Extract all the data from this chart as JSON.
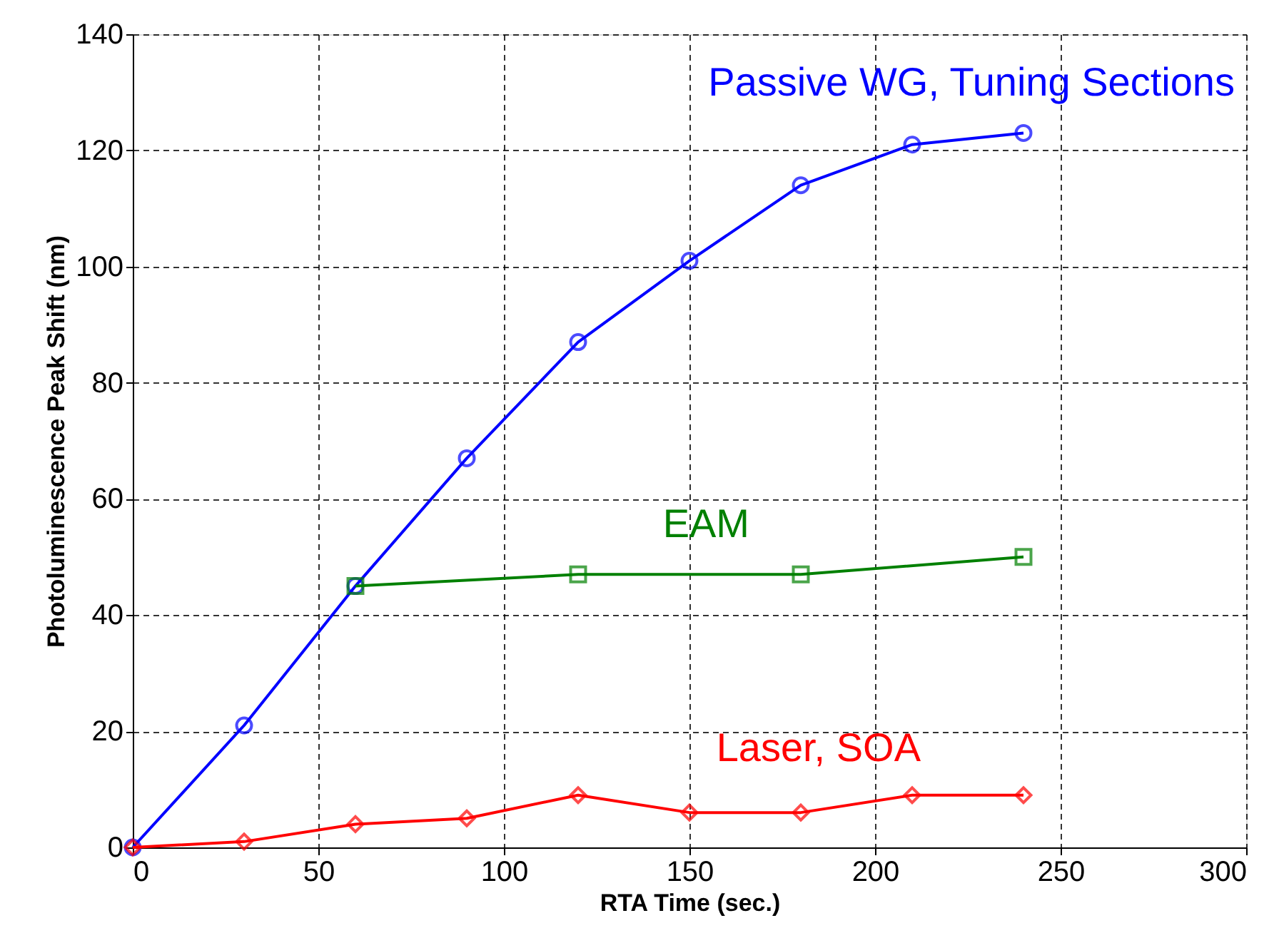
{
  "chart_data": {
    "type": "line",
    "xlabel": "RTA Time (sec.)",
    "ylabel": "Photoluminescence Peak Shift (nm)",
    "xlim": [
      0,
      300
    ],
    "xticks": [
      0,
      50,
      100,
      150,
      200,
      250,
      300
    ],
    "ylim": [
      0,
      140
    ],
    "yticks": [
      0,
      20,
      40,
      60,
      80,
      100,
      120,
      140
    ],
    "grid": true,
    "line_style": "solid",
    "series": [
      {
        "name": "Passive WG, Tuning Sections",
        "color": "#0000ff",
        "marker": "circle",
        "x": [
          0,
          30,
          60,
          90,
          120,
          150,
          180,
          210,
          240
        ],
        "values": [
          0,
          21,
          45,
          67,
          87,
          101,
          114,
          121,
          123
        ]
      },
      {
        "name": "EAM",
        "color": "#008000",
        "marker": "square",
        "x": [
          60,
          120,
          180,
          240
        ],
        "values": [
          45,
          47,
          47,
          50
        ]
      },
      {
        "name": "Laser, SOA",
        "color": "#ff0000",
        "marker": "diamond",
        "x": [
          0,
          30,
          60,
          90,
          120,
          150,
          180,
          210,
          240
        ],
        "values": [
          0,
          1,
          4,
          5,
          9,
          6,
          6,
          9,
          9
        ]
      }
    ]
  }
}
